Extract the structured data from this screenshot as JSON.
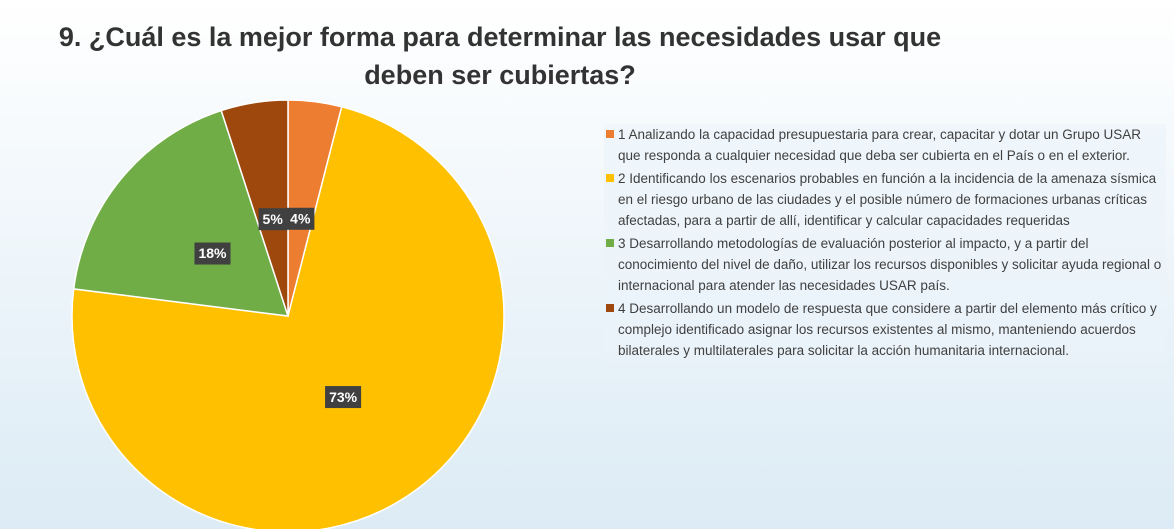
{
  "chart_data": {
    "type": "pie",
    "title": "9. ¿Cuál es la mejor forma para determinar las necesidades usar que deben ser cubiertas?",
    "categories": [
      "1 Analizando la capacidad presupuestaria para crear, capacitar y dotar un Grupo USAR que responda a cualquier necesidad que deba ser cubierta en el País o en el exterior.",
      "2 Identificando los escenarios probables en función a la incidencia de la amenaza sísmica en el riesgo urbano de las ciudades y el posible número de formaciones urbanas críticas afectadas, para a partir de allí, identificar y calcular capacidades requeridas",
      "3 Desarrollando metodologías de evaluación posterior al impacto, y a partir del conocimiento del nivel de daño, utilizar los recursos disponibles y solicitar ayuda regional o internacional para atender las necesidades USAR país.",
      "4 Desarrollando un modelo de respuesta que considere a partir del elemento más crítico y complejo identificado asignar los recursos existentes al mismo, manteniendo acuerdos bilaterales y multilaterales para solicitar la acción humanitaria internacional."
    ],
    "values": [
      4,
      73,
      18,
      5
    ],
    "value_labels": [
      "4%",
      "73%",
      "18%",
      "5%"
    ],
    "colors": [
      "#ED7D31",
      "#FFC000",
      "#70AD47",
      "#9E480E"
    ],
    "legend": "right"
  }
}
